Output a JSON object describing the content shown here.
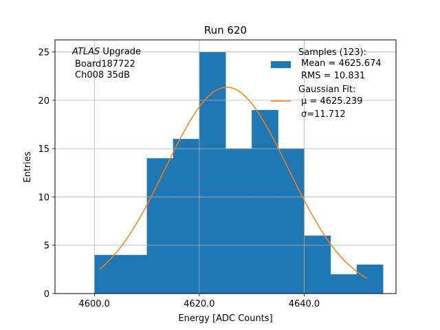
{
  "chart_data": {
    "type": "histogram",
    "title": "Run 620",
    "xlabel": "Energy [ADC Counts]",
    "ylabel": "Entries",
    "xlim": [
      4592.5,
      4657.5
    ],
    "ylim": [
      0,
      26.25
    ],
    "xticks": [
      4600.0,
      4620.0,
      4640.0
    ],
    "xtick_labels": [
      "4600.0",
      "4620.0",
      "4640.0"
    ],
    "yticks": [
      0,
      5,
      10,
      15,
      20,
      25
    ],
    "ytick_labels": [
      "0",
      "5",
      "10",
      "15",
      "20",
      "25"
    ],
    "grid": true,
    "bar_color": "#1f77b4",
    "fit_color": "#ff7f0e",
    "bins": [
      {
        "x0": 4600,
        "x1": 4605,
        "count": 4
      },
      {
        "x0": 4605,
        "x1": 4610,
        "count": 4
      },
      {
        "x0": 4610,
        "x1": 4615,
        "count": 14
      },
      {
        "x0": 4615,
        "x1": 4620,
        "count": 16
      },
      {
        "x0": 4620,
        "x1": 4625,
        "count": 25
      },
      {
        "x0": 4625,
        "x1": 4630,
        "count": 15
      },
      {
        "x0": 4630,
        "x1": 4635,
        "count": 19
      },
      {
        "x0": 4635,
        "x1": 4640,
        "count": 15
      },
      {
        "x0": 4640,
        "x1": 4645,
        "count": 6
      },
      {
        "x0": 4645,
        "x1": 4650,
        "count": 2
      },
      {
        "x0": 4650,
        "x1": 4655,
        "count": 3
      }
    ],
    "fit": {
      "mu": 4625.239,
      "sigma": 11.712,
      "amplitude": 21.35,
      "x_range": [
        4601.0,
        4652.0
      ]
    },
    "annotation": {
      "line1_italic": "ATLAS",
      "line1_rest": " Upgrade",
      "line2": "Board187722",
      "line3": "Ch008 35dB"
    },
    "legend": {
      "placement": "top-right",
      "hist_title": "Samples (123):",
      "hist_mean": "Mean = 4625.674",
      "hist_rms": "RMS = 10.831",
      "fit_title": "Gaussian Fit:",
      "fit_mu": "μ = 4625.239",
      "fit_sigma": "σ=11.712"
    }
  }
}
